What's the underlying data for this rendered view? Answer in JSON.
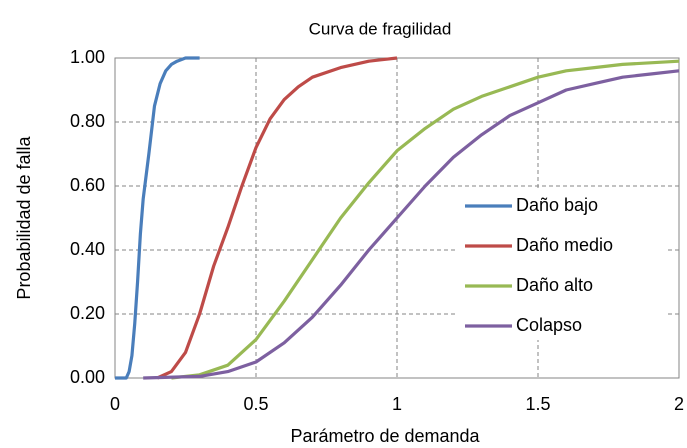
{
  "chart_data": {
    "type": "line",
    "title": "Curva de fragilidad",
    "x_label": "Parámetro de demanda",
    "y_label": "Probabilidad de falla",
    "xlim": [
      0,
      2
    ],
    "xticks": [
      0,
      0.5,
      1,
      1.5,
      2
    ],
    "ylim": [
      0,
      1
    ],
    "yticks": [
      {
        "value": 0,
        "label": "0.00"
      },
      {
        "value": 0.2,
        "label": "0.20"
      },
      {
        "value": 0.4,
        "label": "0.40"
      },
      {
        "value": 0.6,
        "label": "0.60"
      },
      {
        "value": 0.8,
        "label": "0.80"
      },
      {
        "value": 1,
        "label": "1.00"
      }
    ],
    "grid": true,
    "legend": "right",
    "series": [
      {
        "name": "Daño bajo",
        "color": "#4a7ebb",
        "x": [
          0,
          0.04,
          0.05,
          0.06,
          0.07,
          0.08,
          0.09,
          0.1,
          0.12,
          0.14,
          0.16,
          0.18,
          0.2,
          0.22,
          0.25,
          0.3
        ],
        "values": [
          0,
          0,
          0.02,
          0.07,
          0.17,
          0.3,
          0.45,
          0.56,
          0.7,
          0.85,
          0.92,
          0.96,
          0.98,
          0.99,
          1,
          1
        ]
      },
      {
        "name": "Daño medio",
        "color": "#be4b48",
        "x": [
          0.15,
          0.2,
          0.25,
          0.3,
          0.35,
          0.4,
          0.45,
          0.5,
          0.55,
          0.6,
          0.65,
          0.7,
          0.8,
          0.9,
          1
        ],
        "values": [
          0,
          0.02,
          0.08,
          0.2,
          0.35,
          0.47,
          0.6,
          0.72,
          0.81,
          0.87,
          0.91,
          0.94,
          0.97,
          0.99,
          1
        ]
      },
      {
        "name": "Daño alto",
        "color": "#98b954",
        "x": [
          0.2,
          0.3,
          0.4,
          0.5,
          0.6,
          0.7,
          0.8,
          0.9,
          1,
          1.1,
          1.2,
          1.3,
          1.4,
          1.5,
          1.6,
          1.7,
          1.8,
          2
        ],
        "values": [
          0,
          0.01,
          0.04,
          0.12,
          0.24,
          0.37,
          0.5,
          0.61,
          0.71,
          0.78,
          0.84,
          0.88,
          0.91,
          0.94,
          0.96,
          0.97,
          0.98,
          0.99
        ]
      },
      {
        "name": "Colapso",
        "color": "#7d60a0",
        "x": [
          0.1,
          0.3,
          0.4,
          0.5,
          0.6,
          0.7,
          0.8,
          0.9,
          1,
          1.1,
          1.2,
          1.3,
          1.4,
          1.5,
          1.6,
          1.7,
          1.8,
          1.9,
          2
        ],
        "values": [
          0,
          0.005,
          0.02,
          0.05,
          0.11,
          0.19,
          0.29,
          0.4,
          0.5,
          0.6,
          0.69,
          0.76,
          0.82,
          0.86,
          0.9,
          0.92,
          0.94,
          0.95,
          0.96
        ]
      }
    ]
  }
}
